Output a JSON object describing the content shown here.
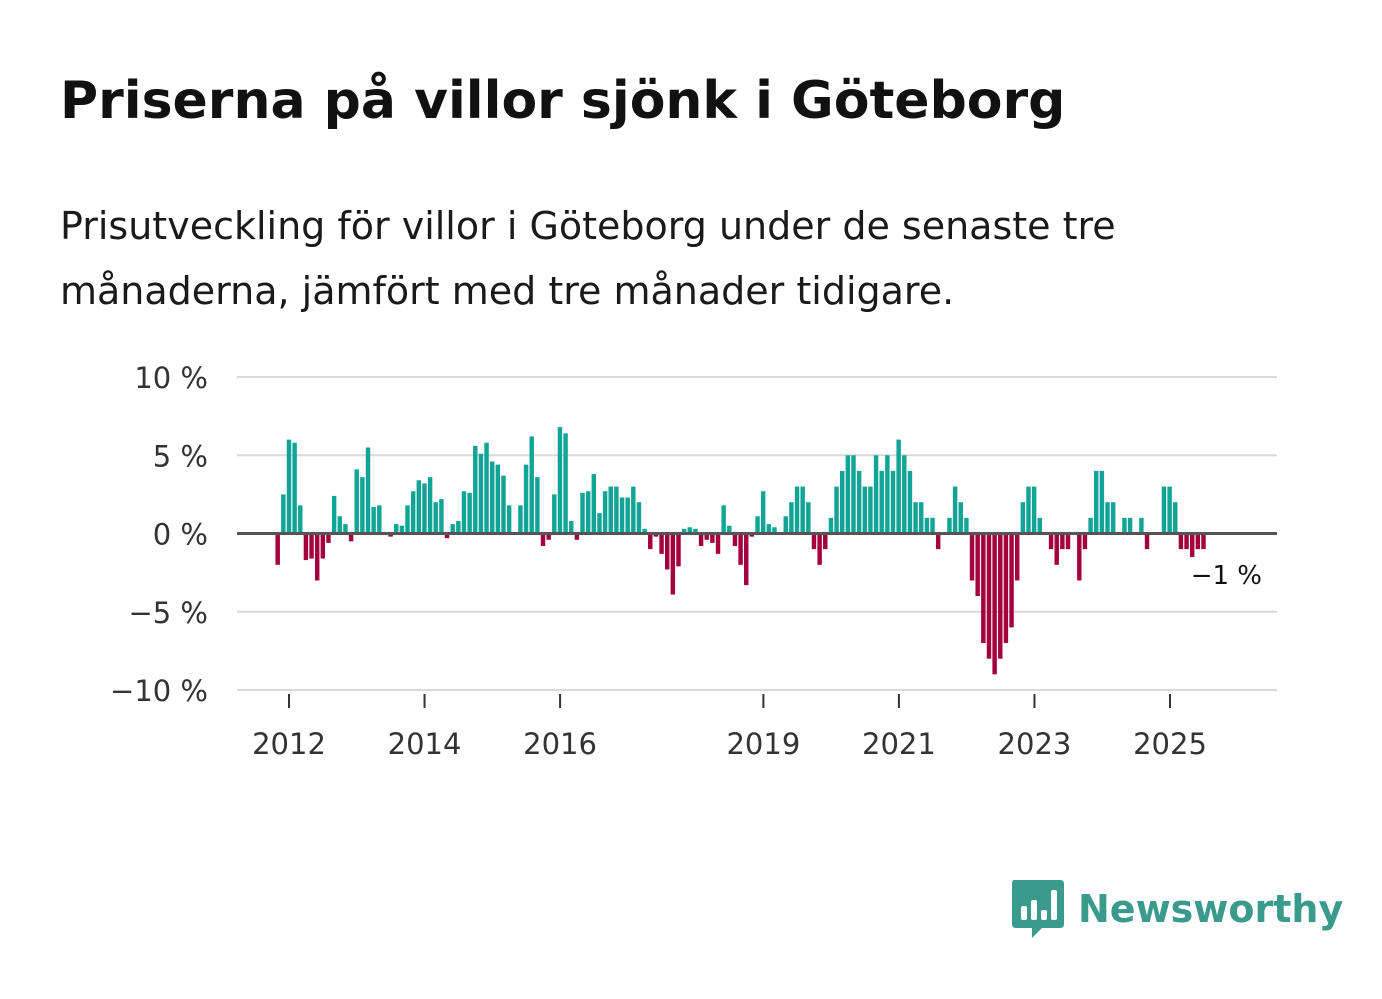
{
  "header": {
    "title": "Priserna på villor sjönk i Göteborg",
    "subtitle": "Prisutveckling för villor i Göteborg under de senaste tre månaderna, jämfört med tre månader tidigare."
  },
  "brand": {
    "name": "Newsworthy",
    "logo_icon": "bar-chart-speech-bubble-icon",
    "color": "#3a9a8c"
  },
  "colors": {
    "positive": "#12a597",
    "negative": "#a4003e",
    "grid": "#d9d9d9",
    "zero_line": "#555555"
  },
  "chart_data": {
    "type": "bar",
    "title": "Priserna på villor sjönk i Göteborg",
    "subtitle": "Prisutveckling för villor i Göteborg under de senaste tre månaderna, jämfört med tre månader tidigare.",
    "xlabel": "",
    "ylabel": "",
    "ylim": [
      -10,
      10
    ],
    "yticks": [
      10,
      5,
      0,
      -5,
      -10
    ],
    "ytick_labels": [
      "10 %",
      "5 %",
      "0 %",
      "−5 %",
      "−10 %"
    ],
    "xticks": [
      2012,
      2014,
      2016,
      2019,
      2021,
      2023,
      2025
    ],
    "xtick_labels": [
      "2012",
      "2014",
      "2016",
      "2019",
      "2021",
      "2023",
      "2025"
    ],
    "grid": true,
    "x_start": 2011.833,
    "step_years": 0.0833,
    "values": [
      -2.0,
      2.5,
      6.0,
      5.8,
      1.8,
      -1.7,
      -1.6,
      -3.0,
      -1.6,
      -0.6,
      2.4,
      1.1,
      0.6,
      -0.5,
      4.1,
      3.6,
      5.5,
      1.7,
      1.8,
      0.1,
      -0.2,
      0.6,
      0.5,
      1.8,
      2.7,
      3.4,
      3.2,
      3.6,
      2.0,
      2.2,
      -0.3,
      0.6,
      0.8,
      2.7,
      2.6,
      5.6,
      5.1,
      5.8,
      4.6,
      4.4,
      3.7,
      1.8,
      0.1,
      1.8,
      4.4,
      6.2,
      3.6,
      -0.8,
      -0.4,
      2.5,
      6.8,
      6.4,
      0.8,
      -0.4,
      2.6,
      2.7,
      3.8,
      1.3,
      2.7,
      3.0,
      3.0,
      2.3,
      2.3,
      3.0,
      2.0,
      0.3,
      -1.0,
      -0.2,
      -1.3,
      -2.3,
      -3.9,
      -2.1,
      0.3,
      0.4,
      0.3,
      -0.8,
      -0.4,
      -0.6,
      -1.3,
      1.8,
      0.5,
      -0.8,
      -2.0,
      -3.3,
      -0.2,
      1.1,
      2.7,
      0.6,
      0.4,
      0.1,
      1.1,
      2.0,
      3.0,
      3.0,
      2.0,
      -1.0,
      -2.0,
      -1.0,
      1.0,
      3.0,
      4.0,
      5.0,
      5.0,
      4.0,
      3.0,
      3.0,
      5.0,
      4.0,
      5.0,
      4.0,
      6.0,
      5.0,
      4.0,
      2.0,
      2.0,
      1.0,
      1.0,
      -1.0,
      0.0,
      1.0,
      3.0,
      2.0,
      1.0,
      -3.0,
      -4.0,
      -7.0,
      -8.0,
      -9.0,
      -8.0,
      -7.0,
      -6.0,
      -3.0,
      2.0,
      3.0,
      3.0,
      1.0,
      0.0,
      -1.0,
      -2.0,
      -1.0,
      -1.0,
      0.0,
      -3.0,
      -1.0,
      1.0,
      4.0,
      4.0,
      2.0,
      2.0,
      0.0,
      1.0,
      1.0,
      0.0,
      1.0,
      -1.0,
      0.0,
      0.0,
      3.0,
      3.0,
      2.0,
      -1.0,
      -1.0,
      -1.5,
      -1.0,
      -1.0
    ],
    "annotation": {
      "text": "−1 %",
      "value": -1
    }
  }
}
